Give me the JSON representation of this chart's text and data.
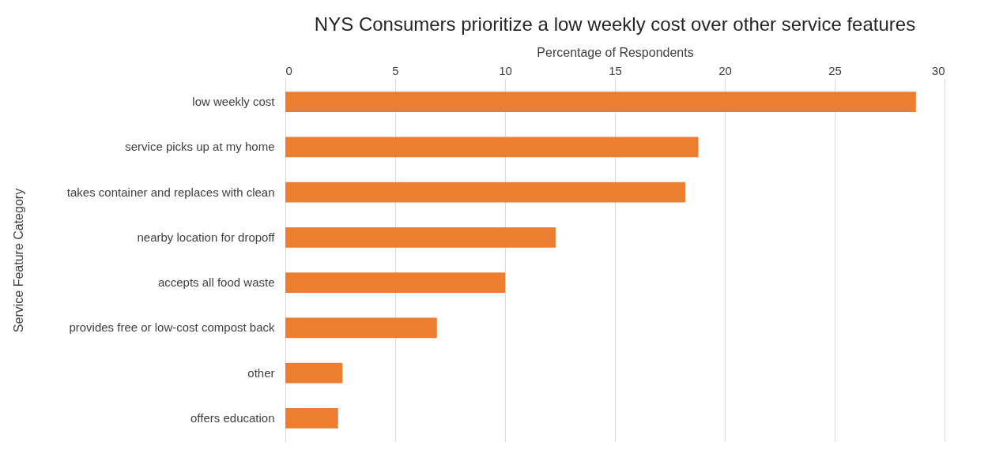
{
  "chart_data": {
    "type": "bar",
    "orientation": "horizontal",
    "title": "NYS Consumers prioritize a low weekly cost over other service features",
    "xlabel": "Percentage of Respondents",
    "ylabel": "Service Feature Category",
    "categories": [
      "low weekly cost",
      "service picks up at my home",
      "takes container and replaces with clean",
      "nearby location for dropoff",
      "accepts all food waste",
      "provides free or low-cost compost back",
      "other",
      "offers education"
    ],
    "values": [
      28.7,
      18.8,
      18.2,
      12.3,
      10.0,
      6.9,
      2.6,
      2.4
    ],
    "color": "#ed7d31",
    "xlim": [
      0,
      30
    ],
    "xticks": [
      0,
      5,
      10,
      15,
      20,
      25,
      30
    ],
    "grid": "x"
  }
}
